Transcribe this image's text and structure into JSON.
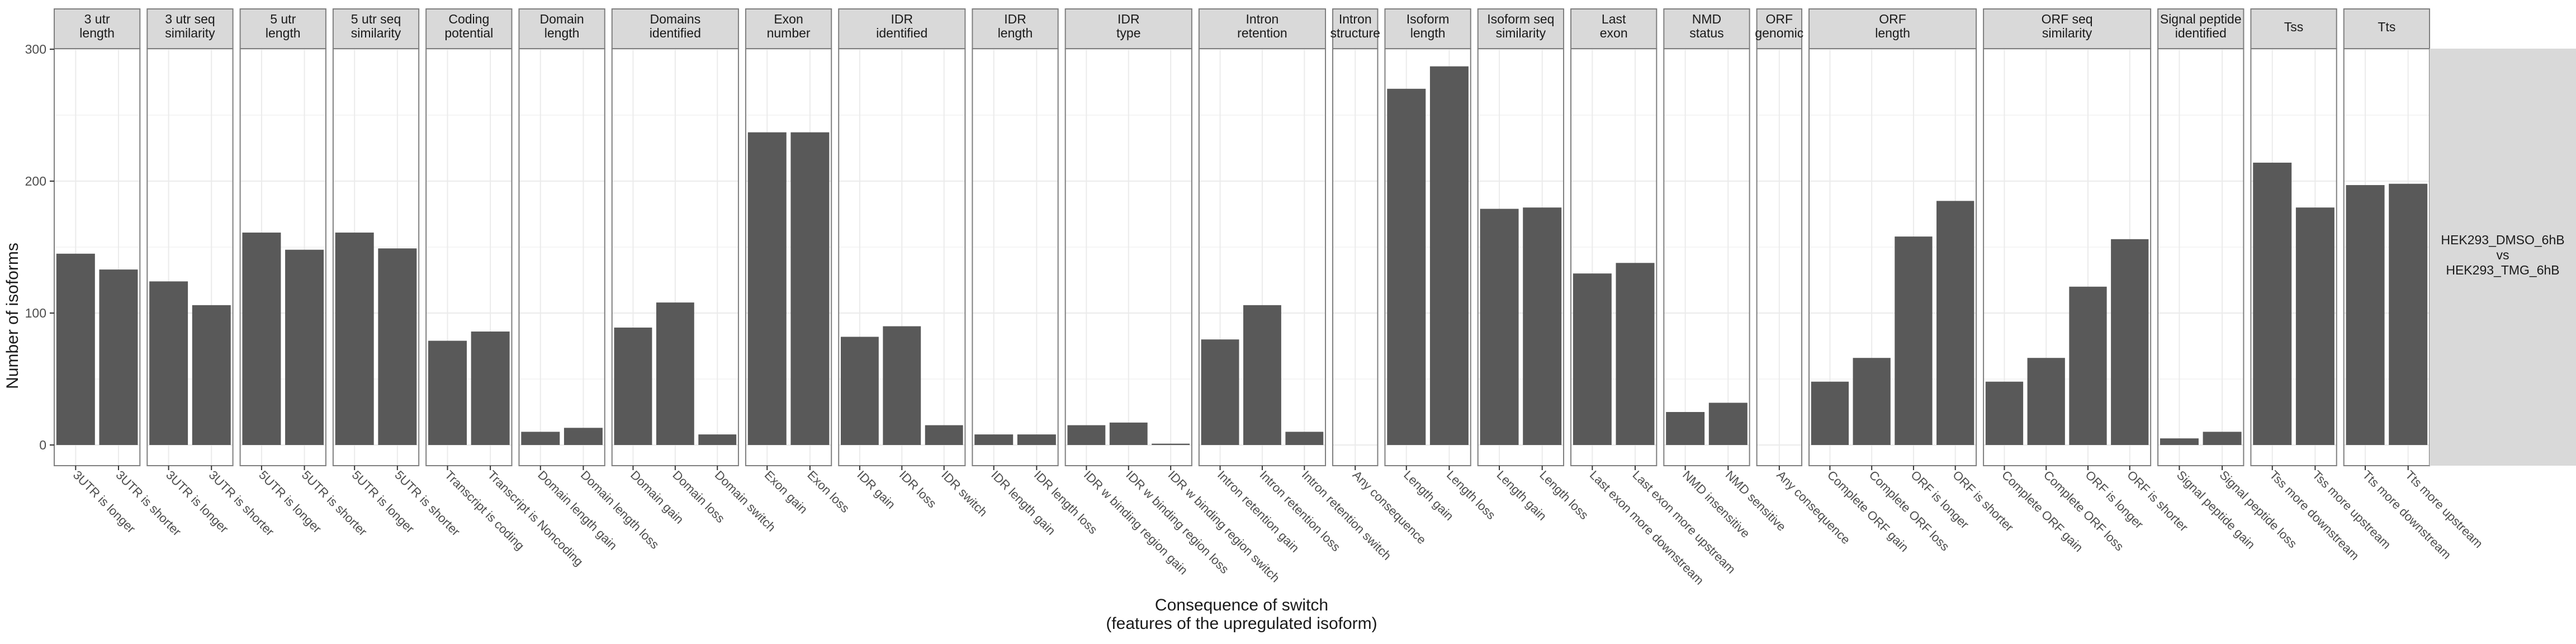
{
  "chart_data": {
    "type": "bar",
    "title": "",
    "xlabel": "Consequence of switch\n(features of the upregulated isoform)",
    "ylabel": "Number of isoforms",
    "ylim": [
      0,
      300
    ],
    "yticks": [
      0,
      100,
      200,
      300
    ],
    "grid": true,
    "colors": {
      "bar": "#595959",
      "strip": "#d9d9d9",
      "panel_border": "#7f7f7f",
      "grid": "#ebebeb",
      "text": "#1a1a1a",
      "axis_text": "#4d4d4d"
    },
    "facet_row_label": "HEK293_DMSO_6hB\nvs\nHEK293_TMG_6hB",
    "facets": [
      {
        "label": "3 utr\nlength",
        "categories": [
          "3UTR is longer",
          "3UTR is shorter"
        ],
        "values": [
          145,
          133
        ]
      },
      {
        "label": "3 utr seq\nsimilarity",
        "categories": [
          "3UTR is longer",
          "3UTR is shorter"
        ],
        "values": [
          124,
          106
        ]
      },
      {
        "label": "5 utr\nlength",
        "categories": [
          "5UTR is longer",
          "5UTR is shorter"
        ],
        "values": [
          161,
          148
        ]
      },
      {
        "label": "5 utr seq\nsimilarity",
        "categories": [
          "5UTR is longer",
          "5UTR is shorter"
        ],
        "values": [
          161,
          149
        ]
      },
      {
        "label": "Coding\npotential",
        "categories": [
          "Transcript is coding",
          "Transcript is Noncoding"
        ],
        "values": [
          79,
          86
        ]
      },
      {
        "label": "Domain\nlength",
        "categories": [
          "Domain length gain",
          "Domain length loss"
        ],
        "values": [
          10,
          13
        ]
      },
      {
        "label": "Domains\nidentified",
        "categories": [
          "Domain gain",
          "Domain loss",
          "Domain switch"
        ],
        "values": [
          89,
          108,
          8
        ]
      },
      {
        "label": "Exon\nnumber",
        "categories": [
          "Exon gain",
          "Exon loss"
        ],
        "values": [
          237,
          237
        ]
      },
      {
        "label": "IDR\nidentified",
        "categories": [
          "IDR gain",
          "IDR loss",
          "IDR switch"
        ],
        "values": [
          82,
          90,
          15
        ]
      },
      {
        "label": "IDR\nlength",
        "categories": [
          "IDR length gain",
          "IDR length loss"
        ],
        "values": [
          8,
          8
        ]
      },
      {
        "label": "IDR\ntype",
        "categories": [
          "IDR w binding region gain",
          "IDR w binding region loss",
          "IDR w binding region switch"
        ],
        "values": [
          15,
          17,
          1
        ]
      },
      {
        "label": "Intron\nretention",
        "categories": [
          "Intron retention gain",
          "Intron retention loss",
          "Intron retention switch"
        ],
        "values": [
          80,
          106,
          10
        ]
      },
      {
        "label": "Intron\nstructure",
        "categories": [
          "Any consequence"
        ],
        "values": [
          0
        ]
      },
      {
        "label": "Isoform\nlength",
        "categories": [
          "Length gain",
          "Length loss"
        ],
        "values": [
          270,
          287
        ]
      },
      {
        "label": "Isoform seq\nsimilarity",
        "categories": [
          "Length gain",
          "Length loss"
        ],
        "values": [
          179,
          180
        ]
      },
      {
        "label": "Last\nexon",
        "categories": [
          "Last exon more downstream",
          "Last exon more upstream"
        ],
        "values": [
          130,
          138
        ]
      },
      {
        "label": "NMD\nstatus",
        "categories": [
          "NMD insensitive",
          "NMD sensitive"
        ],
        "values": [
          25,
          32
        ]
      },
      {
        "label": "ORF\ngenomic",
        "categories": [
          "Any consequence"
        ],
        "values": [
          0
        ]
      },
      {
        "label": "ORF\nlength",
        "categories": [
          "Complete ORF gain",
          "Complete ORF loss",
          "ORF is longer",
          "ORF is shorter"
        ],
        "values": [
          48,
          66,
          158,
          185
        ]
      },
      {
        "label": "ORF seq\nsimilarity",
        "categories": [
          "Complete ORF gain",
          "Complete ORF loss",
          "ORF is longer",
          "ORF is shorter"
        ],
        "values": [
          48,
          66,
          120,
          156
        ]
      },
      {
        "label": "Signal peptide\nidentified",
        "categories": [
          "Signal peptide gain",
          "Signal peptide loss"
        ],
        "values": [
          5,
          10
        ]
      },
      {
        "label": "Tss",
        "categories": [
          "Tss more downstream",
          "Tss more upstream"
        ],
        "values": [
          214,
          180
        ]
      },
      {
        "label": "Tts",
        "categories": [
          "Tts more downstream",
          "Tts more upstream"
        ],
        "values": [
          197,
          198
        ]
      }
    ]
  }
}
